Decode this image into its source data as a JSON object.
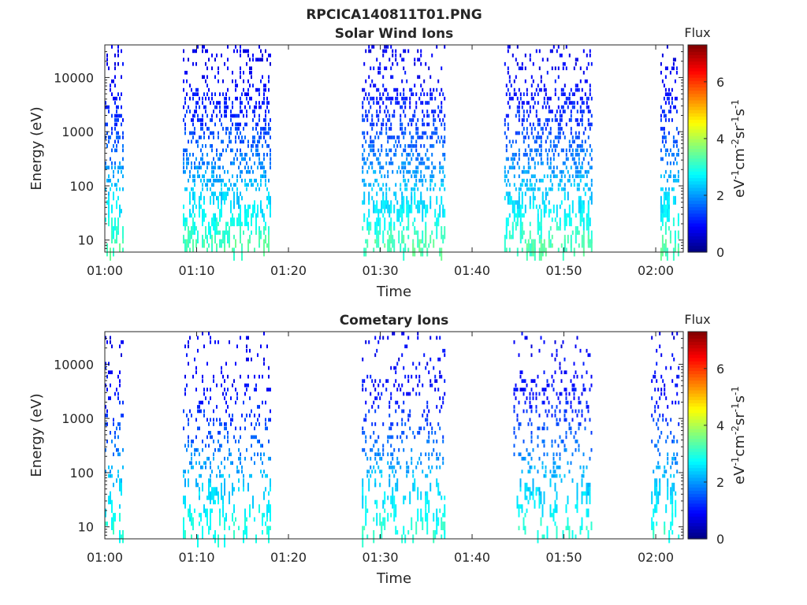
{
  "figure": {
    "title": "RPCICA140811T01.PNG"
  },
  "chart_data": [
    {
      "type": "heatmap",
      "title": "Solar Wind Ions",
      "xlabel": "Time",
      "ylabel": "Energy (eV)",
      "yscale": "log",
      "xlim": [
        "01:00",
        "02:03"
      ],
      "xticks": [
        "01:00",
        "01:10",
        "01:20",
        "01:30",
        "01:40",
        "01:50",
        "02:00"
      ],
      "ylim": [
        6,
        40000
      ],
      "yticks": [
        10,
        100,
        1000,
        10000
      ],
      "ytick_labels": [
        "10",
        "100",
        "1000",
        "10000"
      ],
      "colorbar": {
        "title": "Flux",
        "label": "eV-1cm-2sr-1s-1",
        "ticks": [
          0,
          2,
          4,
          6
        ],
        "range": [
          0,
          7.3
        ],
        "colormap": "jet"
      },
      "active_intervals_minutes": [
        [
          0,
          2
        ],
        [
          8.5,
          18
        ],
        [
          28,
          37
        ],
        [
          43.5,
          53
        ],
        [
          60.5,
          62.5
        ]
      ],
      "flux_by_energy_band": [
        {
          "band_ev": 10,
          "flux": 3.3
        },
        {
          "band_ev": 30,
          "flux": 2.7
        },
        {
          "band_ev": 100,
          "flux": 2.3
        },
        {
          "band_ev": 300,
          "flux": 1.8
        },
        {
          "band_ev": 1000,
          "flux": 1.4
        },
        {
          "band_ev": 3000,
          "flux": 1.1
        },
        {
          "band_ev": 10000,
          "flux": 0.9
        },
        {
          "band_ev": 30000,
          "flux": 0.8
        }
      ]
    },
    {
      "type": "heatmap",
      "title": "Cometary Ions",
      "xlabel": "Time",
      "ylabel": "Energy (eV)",
      "yscale": "log",
      "xlim": [
        "01:00",
        "02:03"
      ],
      "xticks": [
        "01:00",
        "01:10",
        "01:20",
        "01:30",
        "01:40",
        "01:50",
        "02:00"
      ],
      "ylim": [
        6,
        40000
      ],
      "yticks": [
        10,
        100,
        1000,
        10000
      ],
      "ytick_labels": [
        "10",
        "100",
        "1000",
        "10000"
      ],
      "colorbar": {
        "title": "Flux",
        "label": "eV-1cm-2sr-1s-1",
        "ticks": [
          0,
          2,
          4,
          6
        ],
        "range": [
          0,
          7.3
        ],
        "colormap": "jet"
      },
      "active_intervals_minutes": [
        [
          0,
          2
        ],
        [
          8.5,
          18
        ],
        [
          28,
          37
        ],
        [
          44.5,
          53
        ],
        [
          59.5,
          62.5
        ]
      ],
      "flux_by_energy_band": [
        {
          "band_ev": 10,
          "flux": 3.0
        },
        {
          "band_ev": 30,
          "flux": 2.6
        },
        {
          "band_ev": 100,
          "flux": 2.2
        },
        {
          "band_ev": 300,
          "flux": 1.7
        },
        {
          "band_ev": 1000,
          "flux": 1.3
        },
        {
          "band_ev": 3000,
          "flux": 1.0
        },
        {
          "band_ev": 10000,
          "flux": 0.9
        },
        {
          "band_ev": 30000,
          "flux": 0.8
        }
      ]
    }
  ]
}
